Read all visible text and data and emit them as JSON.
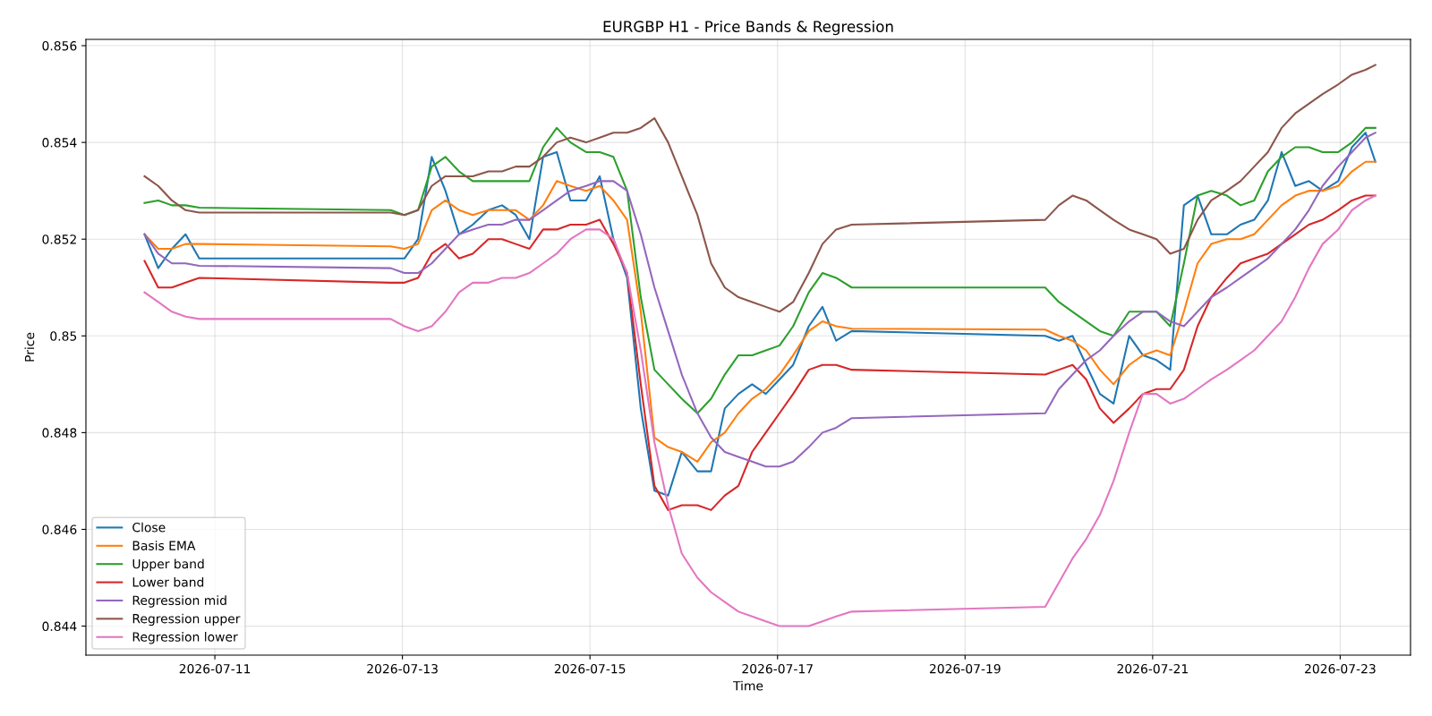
{
  "chart_data": {
    "type": "line",
    "title": "EURGBP H1 - Price Bands & Regression",
    "xlabel": "Time",
    "ylabel": "Price",
    "x": [
      "2026-07-10T06:00",
      "2026-07-10T09:30",
      "2026-07-10T13:00",
      "2026-07-10T16:30",
      "2026-07-10T20:00",
      "2026-07-12T21:00",
      "2026-07-13T00:30",
      "2026-07-13T04:00",
      "2026-07-13T07:30",
      "2026-07-13T11:00",
      "2026-07-13T14:30",
      "2026-07-13T18:00",
      "2026-07-13T22:00",
      "2026-07-14T01:30",
      "2026-07-14T05:00",
      "2026-07-14T08:30",
      "2026-07-14T12:00",
      "2026-07-14T15:30",
      "2026-07-14T19:00",
      "2026-07-14T23:00",
      "2026-07-15T02:30",
      "2026-07-15T06:00",
      "2026-07-15T09:30",
      "2026-07-15T13:00",
      "2026-07-15T16:30",
      "2026-07-15T20:00",
      "2026-07-15T23:30",
      "2026-07-16T03:30",
      "2026-07-16T07:00",
      "2026-07-16T10:30",
      "2026-07-16T14:00",
      "2026-07-16T17:30",
      "2026-07-16T21:00",
      "2026-07-17T00:30",
      "2026-07-17T04:00",
      "2026-07-17T08:00",
      "2026-07-17T11:30",
      "2026-07-17T15:00",
      "2026-07-17T19:00",
      "2026-07-19T20:30",
      "2026-07-20T00:00",
      "2026-07-20T03:30",
      "2026-07-20T07:00",
      "2026-07-20T10:30",
      "2026-07-20T14:00",
      "2026-07-20T18:00",
      "2026-07-20T21:30",
      "2026-07-21T01:00",
      "2026-07-21T04:30",
      "2026-07-21T08:00",
      "2026-07-21T11:30",
      "2026-07-21T15:00",
      "2026-07-21T19:00",
      "2026-07-21T22:30",
      "2026-07-22T02:00",
      "2026-07-22T05:30",
      "2026-07-22T09:00",
      "2026-07-22T12:30",
      "2026-07-22T16:00",
      "2026-07-22T19:30",
      "2026-07-22T23:30",
      "2026-07-23T03:00",
      "2026-07-23T06:30",
      "2026-07-23T09:00"
    ],
    "xlim": [
      "2026-07-09T15:00",
      "2026-07-23T18:00"
    ],
    "xticks": [
      "2026-07-11",
      "2026-07-13",
      "2026-07-15",
      "2026-07-17",
      "2026-07-19",
      "2026-07-21",
      "2026-07-23"
    ],
    "ylim": [
      0.8434,
      0.85613
    ],
    "yticks": [
      0.844,
      0.846,
      0.848,
      0.85,
      0.852,
      0.854,
      0.856
    ],
    "grid": true,
    "legend": "lower left",
    "series": [
      {
        "name": "Close",
        "color": "#1f77b4",
        "values": [
          0.8521,
          0.8514,
          0.8518,
          0.8521,
          0.8516,
          0.8516,
          0.8516,
          0.852,
          0.8537,
          0.853,
          0.8521,
          0.8523,
          0.8526,
          0.8527,
          0.8525,
          0.852,
          0.8537,
          0.8538,
          0.8528,
          0.8528,
          0.8533,
          0.852,
          0.8512,
          0.8485,
          0.8468,
          0.8467,
          0.8476,
          0.8472,
          0.8472,
          0.8485,
          0.8488,
          0.849,
          0.8488,
          0.8491,
          0.8494,
          0.8502,
          0.8506,
          0.8499,
          0.8501,
          0.85,
          0.8499,
          0.85,
          0.8494,
          0.8488,
          0.8486,
          0.85,
          0.8496,
          0.8495,
          0.8493,
          0.8527,
          0.8529,
          0.8521,
          0.8521,
          0.8523,
          0.8524,
          0.8528,
          0.8538,
          0.8531,
          0.8532,
          0.853,
          0.8532,
          0.8539,
          0.8542,
          0.8536
        ]
      },
      {
        "name": "Basis EMA",
        "color": "#ff7f0e",
        "values": [
          0.8521,
          0.8518,
          0.8518,
          0.8519,
          0.8519,
          0.85185,
          0.8518,
          0.8519,
          0.8526,
          0.8528,
          0.8526,
          0.8525,
          0.8526,
          0.8526,
          0.8526,
          0.8524,
          0.8527,
          0.8532,
          0.8531,
          0.853,
          0.8531,
          0.8528,
          0.8524,
          0.8505,
          0.8479,
          0.8477,
          0.8476,
          0.8474,
          0.8478,
          0.848,
          0.8484,
          0.8487,
          0.8489,
          0.8492,
          0.8496,
          0.8501,
          0.8503,
          0.8502,
          0.85015,
          0.85013,
          0.85,
          0.8499,
          0.8497,
          0.8493,
          0.849,
          0.8494,
          0.8496,
          0.8497,
          0.8496,
          0.8505,
          0.8515,
          0.8519,
          0.852,
          0.852,
          0.8521,
          0.8524,
          0.8527,
          0.8529,
          0.853,
          0.853,
          0.8531,
          0.8534,
          0.8536,
          0.8536
        ]
      },
      {
        "name": "Upper band",
        "color": "#2ca02c",
        "values": [
          0.85275,
          0.8528,
          0.8527,
          0.8527,
          0.85265,
          0.8526,
          0.8525,
          0.8526,
          0.8535,
          0.8537,
          0.8534,
          0.8532,
          0.8532,
          0.8532,
          0.8532,
          0.8532,
          0.8539,
          0.8543,
          0.854,
          0.8538,
          0.8538,
          0.8537,
          0.853,
          0.8508,
          0.8493,
          0.849,
          0.8487,
          0.8484,
          0.8487,
          0.8492,
          0.8496,
          0.8496,
          0.8497,
          0.8498,
          0.8502,
          0.8509,
          0.8513,
          0.8512,
          0.851,
          0.851,
          0.8507,
          0.8505,
          0.8503,
          0.8501,
          0.85,
          0.8505,
          0.8505,
          0.8505,
          0.8502,
          0.8515,
          0.8529,
          0.853,
          0.8529,
          0.8527,
          0.8528,
          0.8534,
          0.8537,
          0.8539,
          0.8539,
          0.8538,
          0.8538,
          0.854,
          0.8543,
          0.8543
        ]
      },
      {
        "name": "Lower band",
        "color": "#d62728",
        "values": [
          0.85155,
          0.851,
          0.851,
          0.8511,
          0.8512,
          0.8511,
          0.8511,
          0.8512,
          0.8517,
          0.8519,
          0.8516,
          0.8517,
          0.852,
          0.852,
          0.8519,
          0.8518,
          0.8522,
          0.8522,
          0.8523,
          0.8523,
          0.8524,
          0.8519,
          0.8513,
          0.849,
          0.8469,
          0.8464,
          0.8465,
          0.8465,
          0.8464,
          0.8467,
          0.8469,
          0.8476,
          0.848,
          0.8484,
          0.8488,
          0.8493,
          0.8494,
          0.8494,
          0.8493,
          0.8492,
          0.8493,
          0.8494,
          0.8491,
          0.8485,
          0.8482,
          0.8485,
          0.8488,
          0.8489,
          0.8489,
          0.8493,
          0.8502,
          0.8508,
          0.8512,
          0.8515,
          0.8516,
          0.8517,
          0.8519,
          0.8521,
          0.8523,
          0.8524,
          0.8526,
          0.8528,
          0.8529,
          0.8529
        ]
      },
      {
        "name": "Regression mid",
        "color": "#9467bd",
        "values": [
          0.8521,
          0.8517,
          0.8515,
          0.8515,
          0.85145,
          0.8514,
          0.8513,
          0.8513,
          0.8515,
          0.8518,
          0.8521,
          0.8522,
          0.8523,
          0.8523,
          0.8524,
          0.8524,
          0.8526,
          0.8528,
          0.853,
          0.8531,
          0.8532,
          0.8532,
          0.853,
          0.8521,
          0.851,
          0.8501,
          0.8492,
          0.8484,
          0.8479,
          0.8476,
          0.8475,
          0.8474,
          0.8473,
          0.8473,
          0.8474,
          0.8477,
          0.848,
          0.8481,
          0.8483,
          0.8484,
          0.8489,
          0.8492,
          0.8495,
          0.8497,
          0.85,
          0.8503,
          0.8505,
          0.8505,
          0.8503,
          0.8502,
          0.8505,
          0.8508,
          0.851,
          0.8512,
          0.8514,
          0.8516,
          0.8519,
          0.8522,
          0.8526,
          0.8531,
          0.8535,
          0.8538,
          0.8541,
          0.8542
        ]
      },
      {
        "name": "Regression upper",
        "color": "#8c564b",
        "values": [
          0.8533,
          0.8531,
          0.8528,
          0.8526,
          0.85255,
          0.85255,
          0.8525,
          0.8526,
          0.8531,
          0.8533,
          0.8533,
          0.8533,
          0.8534,
          0.8534,
          0.8535,
          0.8535,
          0.8537,
          0.854,
          0.8541,
          0.854,
          0.8541,
          0.8542,
          0.8542,
          0.8543,
          0.8545,
          0.854,
          0.8533,
          0.8525,
          0.8515,
          0.851,
          0.8508,
          0.8507,
          0.8506,
          0.8505,
          0.8507,
          0.8513,
          0.8519,
          0.8522,
          0.8523,
          0.8524,
          0.8527,
          0.8529,
          0.8528,
          0.8526,
          0.8524,
          0.8522,
          0.8521,
          0.852,
          0.8517,
          0.8518,
          0.8524,
          0.8528,
          0.853,
          0.8532,
          0.8535,
          0.8538,
          0.8543,
          0.8546,
          0.8548,
          0.855,
          0.8552,
          0.8554,
          0.8555,
          0.8556
        ]
      },
      {
        "name": "Regression lower",
        "color": "#e377c2",
        "values": [
          0.8509,
          0.8507,
          0.8505,
          0.8504,
          0.85035,
          0.85035,
          0.8502,
          0.8501,
          0.8502,
          0.8505,
          0.8509,
          0.8511,
          0.8511,
          0.8512,
          0.8512,
          0.8513,
          0.8515,
          0.8517,
          0.852,
          0.8522,
          0.8522,
          0.852,
          0.8513,
          0.8497,
          0.8478,
          0.8465,
          0.8455,
          0.845,
          0.8447,
          0.8445,
          0.8443,
          0.8442,
          0.8441,
          0.844,
          0.844,
          0.844,
          0.8441,
          0.8442,
          0.8443,
          0.8444,
          0.8449,
          0.8454,
          0.8458,
          0.8463,
          0.847,
          0.848,
          0.8488,
          0.8488,
          0.8486,
          0.8487,
          0.8489,
          0.8491,
          0.8493,
          0.8495,
          0.8497,
          0.85,
          0.8503,
          0.8508,
          0.8514,
          0.8519,
          0.8522,
          0.8526,
          0.8528,
          0.8529
        ]
      }
    ]
  }
}
